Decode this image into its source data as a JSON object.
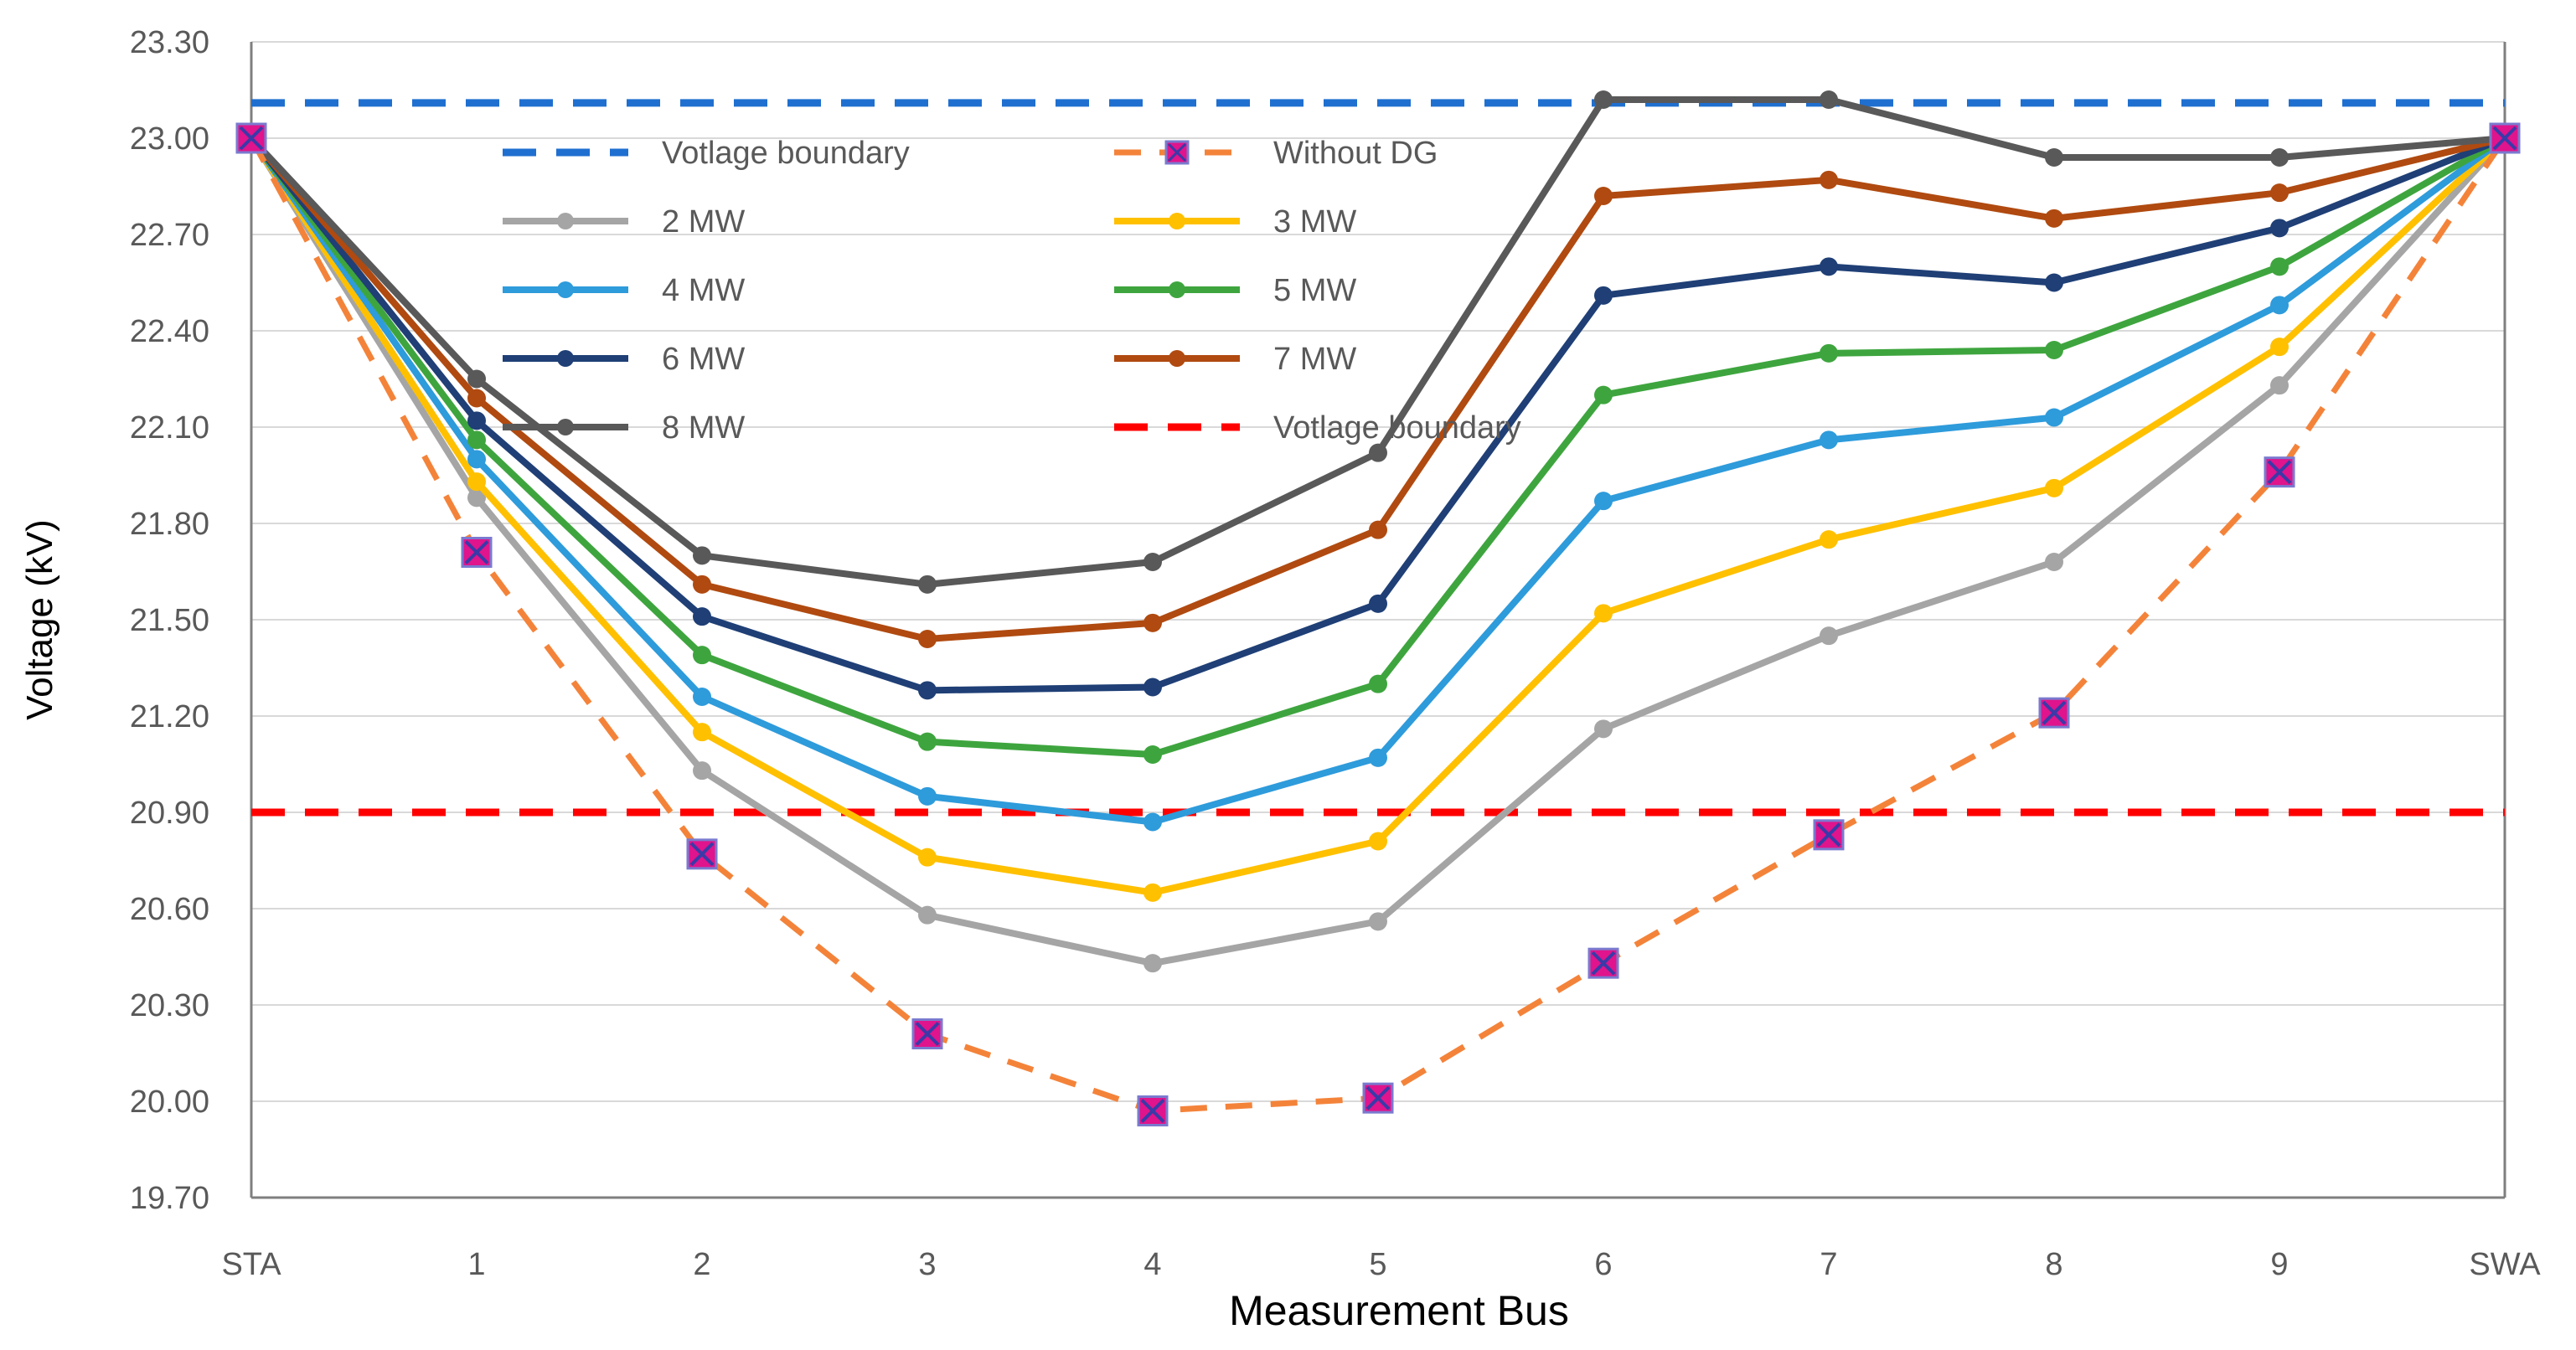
{
  "chart_data": {
    "type": "line",
    "title": "",
    "xlabel": "Measurement Bus",
    "ylabel": "Voltage (kV)",
    "categories": [
      "STA",
      "1",
      "2",
      "3",
      "4",
      "5",
      "6",
      "7",
      "8",
      "9",
      "SWA"
    ],
    "ylim": [
      19.7,
      23.3
    ],
    "yticks": [
      "19.70",
      "20.00",
      "20.30",
      "20.60",
      "20.90",
      "21.20",
      "21.50",
      "21.80",
      "22.10",
      "22.40",
      "22.70",
      "23.00",
      "23.30"
    ],
    "grid": true,
    "legend_position": "top-left, inside plot, two columns",
    "boundaries": [
      {
        "name": "Votlage boundary",
        "value": 23.11,
        "color": "#1F6FD0"
      },
      {
        "name": "Votlage boundary",
        "value": 20.9,
        "color": "#FF0000"
      }
    ],
    "series": [
      {
        "name": "Without DG",
        "color": "#F4833A",
        "marker_color": "#E0148C",
        "values": [
          23.0,
          21.71,
          20.77,
          20.21,
          19.97,
          20.01,
          20.43,
          20.83,
          21.21,
          21.96,
          23.0
        ]
      },
      {
        "name": "2 MW",
        "color": "#A5A5A5",
        "values": [
          23.0,
          21.88,
          21.03,
          20.58,
          20.43,
          20.56,
          21.16,
          21.45,
          21.68,
          22.23,
          23.0
        ]
      },
      {
        "name": "3 MW",
        "color": "#FFC000",
        "values": [
          23.0,
          21.93,
          21.15,
          20.76,
          20.65,
          20.81,
          21.52,
          21.75,
          21.91,
          22.35,
          23.0
        ]
      },
      {
        "name": "4 MW",
        "color": "#2E9BDB",
        "values": [
          23.0,
          22.0,
          21.26,
          20.95,
          20.87,
          21.07,
          21.87,
          22.06,
          22.13,
          22.48,
          23.0
        ]
      },
      {
        "name": "5 MW",
        "color": "#3EA53E",
        "values": [
          23.0,
          22.06,
          21.39,
          21.12,
          21.08,
          21.3,
          22.2,
          22.33,
          22.34,
          22.6,
          23.0
        ]
      },
      {
        "name": "6 MW",
        "color": "#1F3F76",
        "values": [
          23.0,
          22.12,
          21.51,
          21.28,
          21.29,
          21.55,
          22.51,
          22.6,
          22.55,
          22.72,
          23.0
        ]
      },
      {
        "name": "7 MW",
        "color": "#B04A10",
        "values": [
          23.0,
          22.19,
          21.61,
          21.44,
          21.49,
          21.78,
          22.82,
          22.87,
          22.75,
          22.83,
          23.0
        ]
      },
      {
        "name": "8 MW",
        "color": "#595959",
        "values": [
          23.0,
          22.25,
          21.7,
          21.61,
          21.68,
          22.02,
          23.12,
          23.12,
          22.94,
          22.94,
          23.0
        ]
      }
    ],
    "legend": [
      {
        "label": "Votlage boundary",
        "ref": "boundary-blue"
      },
      {
        "label": "Without DG",
        "ref": "Without DG"
      },
      {
        "label": "2 MW",
        "ref": "2 MW"
      },
      {
        "label": "3 MW",
        "ref": "3 MW"
      },
      {
        "label": "4 MW",
        "ref": "4 MW"
      },
      {
        "label": "5 MW",
        "ref": "5 MW"
      },
      {
        "label": "6 MW",
        "ref": "6 MW"
      },
      {
        "label": "7 MW",
        "ref": "7 MW"
      },
      {
        "label": "8 MW",
        "ref": "8 MW"
      },
      {
        "label": "Votlage boundary",
        "ref": "boundary-red"
      }
    ]
  }
}
